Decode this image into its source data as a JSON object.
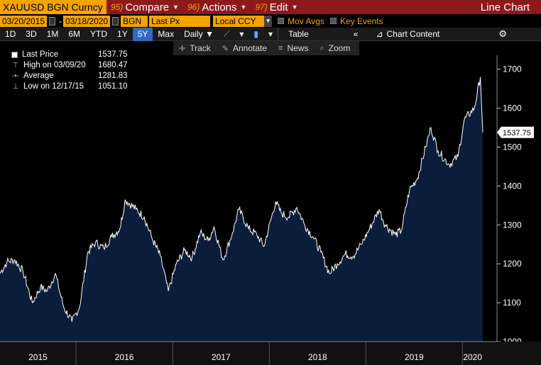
{
  "header": {
    "ticker": "XAUUSD BGN Curncy",
    "menus": [
      {
        "num": "95)",
        "label": "Compare"
      },
      {
        "num": "96)",
        "label": "Actions"
      },
      {
        "num": "97)",
        "label": "Edit"
      }
    ],
    "title": "Line Chart"
  },
  "inputs": {
    "start_date": "03/20/2015",
    "end_date": "03/18/2020",
    "source": "BGN",
    "field": "Last Px",
    "currency": "Local CCY",
    "mov_avgs": "Mov Avgs",
    "key_events": "Key Events"
  },
  "range": {
    "buttons": [
      "1D",
      "3D",
      "1M",
      "6M",
      "YTD",
      "1Y",
      "5Y",
      "Max"
    ],
    "active": "5Y",
    "frequency": "Daily",
    "table": "Table",
    "collapse": "«",
    "chart_content": "Chart Content"
  },
  "tools": {
    "track": "Track",
    "annotate": "Annotate",
    "news": "News",
    "zoom": "Zoom"
  },
  "legend": {
    "last_price_label": "Last Price",
    "last_price_value": "1537.75",
    "high_label": "High on 03/09/20",
    "high_value": "1680.47",
    "average_label": "Average",
    "average_value": "1281.83",
    "low_label": "Low on 12/17/15",
    "low_value": "1051.10"
  },
  "colors": {
    "area_fill": "#0c1d3b",
    "line": "#ffffff",
    "accent_orange": "#f4a300",
    "title_bar": "#8c1a1a"
  },
  "chart_data": {
    "type": "area",
    "series": [
      {
        "name": "Last Price",
        "x": [
          "2015-03-20",
          "2015-04-15",
          "2015-05-15",
          "2015-06-15",
          "2015-07-20",
          "2015-08-20",
          "2015-09-15",
          "2015-10-15",
          "2015-11-15",
          "2015-12-17",
          "2016-01-15",
          "2016-02-15",
          "2016-03-15",
          "2016-04-15",
          "2016-05-15",
          "2016-06-15",
          "2016-07-06",
          "2016-08-15",
          "2016-09-15",
          "2016-10-15",
          "2016-11-15",
          "2016-12-15",
          "2017-01-15",
          "2017-02-15",
          "2017-03-15",
          "2017-04-15",
          "2017-05-15",
          "2017-06-06",
          "2017-07-10",
          "2017-08-15",
          "2017-09-08",
          "2017-10-15",
          "2017-11-15",
          "2017-12-12",
          "2018-01-25",
          "2018-02-15",
          "2018-03-15",
          "2018-04-15",
          "2018-05-15",
          "2018-06-15",
          "2018-07-15",
          "2018-08-16",
          "2018-09-15",
          "2018-10-15",
          "2018-11-15",
          "2018-12-15",
          "2019-01-15",
          "2019-02-20",
          "2019-03-15",
          "2019-04-23",
          "2019-05-15",
          "2019-06-15",
          "2019-07-15",
          "2019-08-15",
          "2019-09-04",
          "2019-10-01",
          "2019-11-12",
          "2019-12-15",
          "2020-01-08",
          "2020-02-15",
          "2020-03-09",
          "2020-03-18"
        ],
        "values": [
          1175,
          1205,
          1210,
          1180,
          1100,
          1140,
          1130,
          1175,
          1090,
          1051,
          1090,
          1230,
          1255,
          1240,
          1270,
          1290,
          1365,
          1340,
          1320,
          1265,
          1220,
          1130,
          1200,
          1235,
          1215,
          1280,
          1260,
          1295,
          1210,
          1280,
          1340,
          1290,
          1275,
          1245,
          1360,
          1330,
          1320,
          1345,
          1300,
          1270,
          1230,
          1175,
          1200,
          1225,
          1220,
          1250,
          1290,
          1340,
          1300,
          1275,
          1285,
          1390,
          1420,
          1500,
          1550,
          1490,
          1455,
          1475,
          1570,
          1600,
          1680,
          1537.75
        ]
      }
    ],
    "xticks": [
      "2015",
      "2016",
      "2017",
      "2018",
      "2019",
      "2020"
    ],
    "yticks": [
      1000,
      1100,
      1200,
      1300,
      1400,
      1500,
      1600,
      1700
    ],
    "ylim": [
      1000,
      1725
    ],
    "xlim": [
      "2015-03-20",
      "2020-03-18"
    ],
    "last_value_label": "1537.75",
    "grid": false,
    "legend": "top-left"
  }
}
